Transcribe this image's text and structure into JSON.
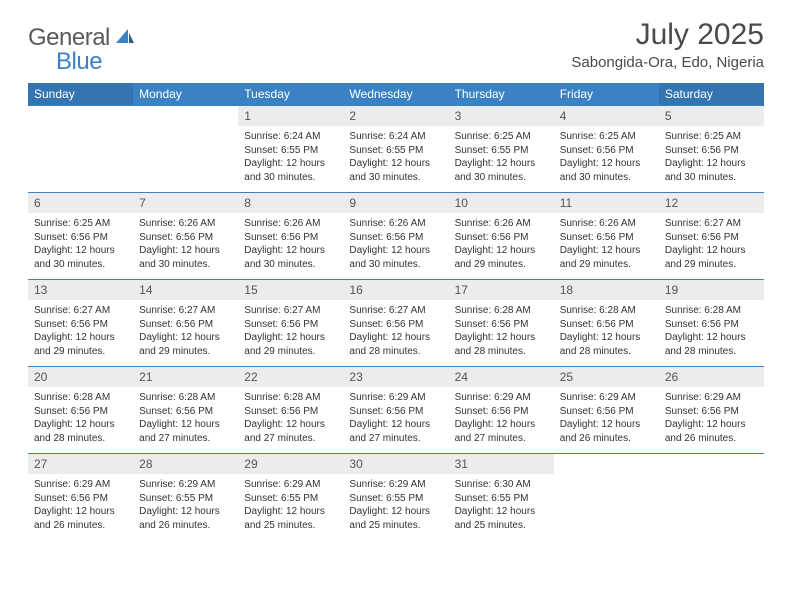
{
  "logo": {
    "part1": "General",
    "part2": "Blue"
  },
  "title": "July 2025",
  "location": "Sabongida-Ora, Edo, Nigeria",
  "colors": {
    "header_bg": "#3b82c4",
    "header_bg_weekend": "#3474b0",
    "daynum_bg": "#ececec",
    "row_border": "#3b82c4",
    "text": "#333333",
    "title_text": "#4a4a4a"
  },
  "typography": {
    "title_fontsize": 30,
    "location_fontsize": 15,
    "header_fontsize": 12,
    "daynum_fontsize": 12,
    "body_fontsize": 10
  },
  "day_labels": [
    "Sunday",
    "Monday",
    "Tuesday",
    "Wednesday",
    "Thursday",
    "Friday",
    "Saturday"
  ],
  "weeks": [
    [
      null,
      null,
      {
        "n": "1",
        "sr": "Sunrise: 6:24 AM",
        "ss": "Sunset: 6:55 PM",
        "dl1": "Daylight: 12 hours",
        "dl2": "and 30 minutes."
      },
      {
        "n": "2",
        "sr": "Sunrise: 6:24 AM",
        "ss": "Sunset: 6:55 PM",
        "dl1": "Daylight: 12 hours",
        "dl2": "and 30 minutes."
      },
      {
        "n": "3",
        "sr": "Sunrise: 6:25 AM",
        "ss": "Sunset: 6:55 PM",
        "dl1": "Daylight: 12 hours",
        "dl2": "and 30 minutes."
      },
      {
        "n": "4",
        "sr": "Sunrise: 6:25 AM",
        "ss": "Sunset: 6:56 PM",
        "dl1": "Daylight: 12 hours",
        "dl2": "and 30 minutes."
      },
      {
        "n": "5",
        "sr": "Sunrise: 6:25 AM",
        "ss": "Sunset: 6:56 PM",
        "dl1": "Daylight: 12 hours",
        "dl2": "and 30 minutes."
      }
    ],
    [
      {
        "n": "6",
        "sr": "Sunrise: 6:25 AM",
        "ss": "Sunset: 6:56 PM",
        "dl1": "Daylight: 12 hours",
        "dl2": "and 30 minutes."
      },
      {
        "n": "7",
        "sr": "Sunrise: 6:26 AM",
        "ss": "Sunset: 6:56 PM",
        "dl1": "Daylight: 12 hours",
        "dl2": "and 30 minutes."
      },
      {
        "n": "8",
        "sr": "Sunrise: 6:26 AM",
        "ss": "Sunset: 6:56 PM",
        "dl1": "Daylight: 12 hours",
        "dl2": "and 30 minutes."
      },
      {
        "n": "9",
        "sr": "Sunrise: 6:26 AM",
        "ss": "Sunset: 6:56 PM",
        "dl1": "Daylight: 12 hours",
        "dl2": "and 30 minutes."
      },
      {
        "n": "10",
        "sr": "Sunrise: 6:26 AM",
        "ss": "Sunset: 6:56 PM",
        "dl1": "Daylight: 12 hours",
        "dl2": "and 29 minutes."
      },
      {
        "n": "11",
        "sr": "Sunrise: 6:26 AM",
        "ss": "Sunset: 6:56 PM",
        "dl1": "Daylight: 12 hours",
        "dl2": "and 29 minutes."
      },
      {
        "n": "12",
        "sr": "Sunrise: 6:27 AM",
        "ss": "Sunset: 6:56 PM",
        "dl1": "Daylight: 12 hours",
        "dl2": "and 29 minutes."
      }
    ],
    [
      {
        "n": "13",
        "sr": "Sunrise: 6:27 AM",
        "ss": "Sunset: 6:56 PM",
        "dl1": "Daylight: 12 hours",
        "dl2": "and 29 minutes."
      },
      {
        "n": "14",
        "sr": "Sunrise: 6:27 AM",
        "ss": "Sunset: 6:56 PM",
        "dl1": "Daylight: 12 hours",
        "dl2": "and 29 minutes."
      },
      {
        "n": "15",
        "sr": "Sunrise: 6:27 AM",
        "ss": "Sunset: 6:56 PM",
        "dl1": "Daylight: 12 hours",
        "dl2": "and 29 minutes."
      },
      {
        "n": "16",
        "sr": "Sunrise: 6:27 AM",
        "ss": "Sunset: 6:56 PM",
        "dl1": "Daylight: 12 hours",
        "dl2": "and 28 minutes."
      },
      {
        "n": "17",
        "sr": "Sunrise: 6:28 AM",
        "ss": "Sunset: 6:56 PM",
        "dl1": "Daylight: 12 hours",
        "dl2": "and 28 minutes."
      },
      {
        "n": "18",
        "sr": "Sunrise: 6:28 AM",
        "ss": "Sunset: 6:56 PM",
        "dl1": "Daylight: 12 hours",
        "dl2": "and 28 minutes."
      },
      {
        "n": "19",
        "sr": "Sunrise: 6:28 AM",
        "ss": "Sunset: 6:56 PM",
        "dl1": "Daylight: 12 hours",
        "dl2": "and 28 minutes."
      }
    ],
    [
      {
        "n": "20",
        "sr": "Sunrise: 6:28 AM",
        "ss": "Sunset: 6:56 PM",
        "dl1": "Daylight: 12 hours",
        "dl2": "and 28 minutes."
      },
      {
        "n": "21",
        "sr": "Sunrise: 6:28 AM",
        "ss": "Sunset: 6:56 PM",
        "dl1": "Daylight: 12 hours",
        "dl2": "and 27 minutes."
      },
      {
        "n": "22",
        "sr": "Sunrise: 6:28 AM",
        "ss": "Sunset: 6:56 PM",
        "dl1": "Daylight: 12 hours",
        "dl2": "and 27 minutes."
      },
      {
        "n": "23",
        "sr": "Sunrise: 6:29 AM",
        "ss": "Sunset: 6:56 PM",
        "dl1": "Daylight: 12 hours",
        "dl2": "and 27 minutes."
      },
      {
        "n": "24",
        "sr": "Sunrise: 6:29 AM",
        "ss": "Sunset: 6:56 PM",
        "dl1": "Daylight: 12 hours",
        "dl2": "and 27 minutes."
      },
      {
        "n": "25",
        "sr": "Sunrise: 6:29 AM",
        "ss": "Sunset: 6:56 PM",
        "dl1": "Daylight: 12 hours",
        "dl2": "and 26 minutes."
      },
      {
        "n": "26",
        "sr": "Sunrise: 6:29 AM",
        "ss": "Sunset: 6:56 PM",
        "dl1": "Daylight: 12 hours",
        "dl2": "and 26 minutes."
      }
    ],
    [
      {
        "n": "27",
        "sr": "Sunrise: 6:29 AM",
        "ss": "Sunset: 6:56 PM",
        "dl1": "Daylight: 12 hours",
        "dl2": "and 26 minutes."
      },
      {
        "n": "28",
        "sr": "Sunrise: 6:29 AM",
        "ss": "Sunset: 6:55 PM",
        "dl1": "Daylight: 12 hours",
        "dl2": "and 26 minutes."
      },
      {
        "n": "29",
        "sr": "Sunrise: 6:29 AM",
        "ss": "Sunset: 6:55 PM",
        "dl1": "Daylight: 12 hours",
        "dl2": "and 25 minutes."
      },
      {
        "n": "30",
        "sr": "Sunrise: 6:29 AM",
        "ss": "Sunset: 6:55 PM",
        "dl1": "Daylight: 12 hours",
        "dl2": "and 25 minutes."
      },
      {
        "n": "31",
        "sr": "Sunrise: 6:30 AM",
        "ss": "Sunset: 6:55 PM",
        "dl1": "Daylight: 12 hours",
        "dl2": "and 25 minutes."
      },
      null,
      null
    ]
  ]
}
